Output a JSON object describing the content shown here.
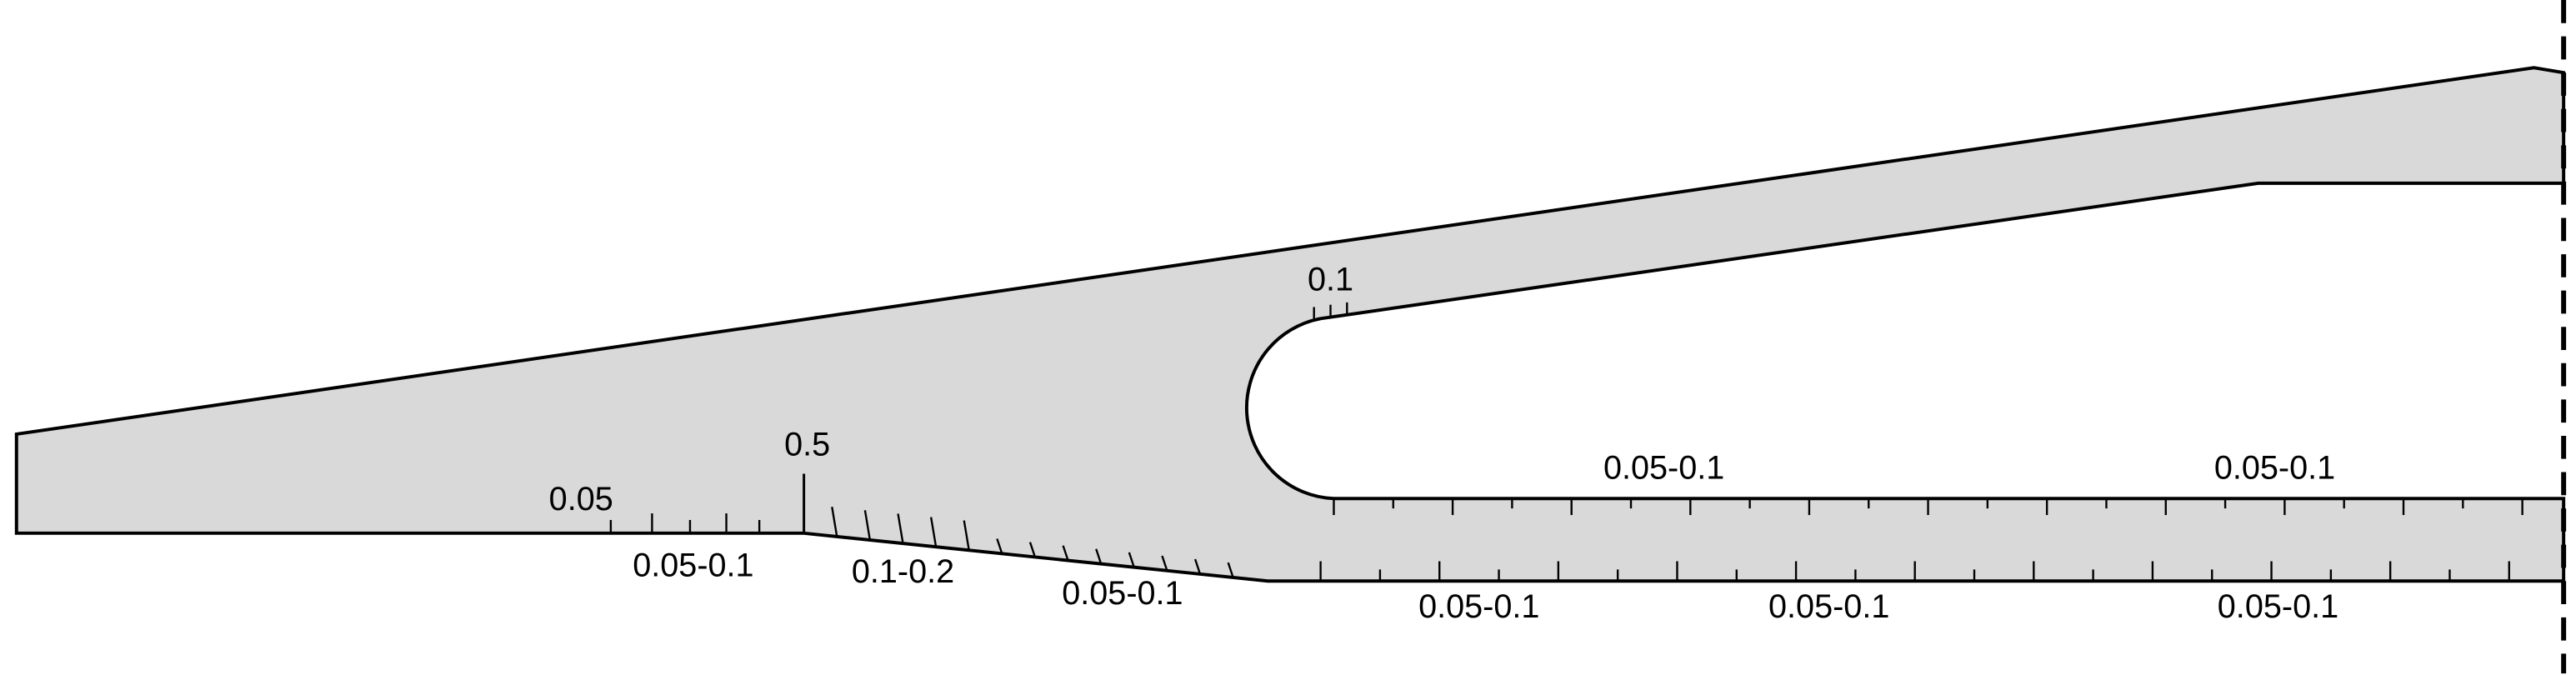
{
  "labels": [
    "0.1",
    "0.5",
    "0.05",
    "0.05-0.1",
    "0.1-0.2",
    "0.05-0.1",
    "0.05-0.1",
    "0.05-0.1",
    "0.05-0.1",
    "0.05-0.1",
    "0.05-0.1"
  ]
}
